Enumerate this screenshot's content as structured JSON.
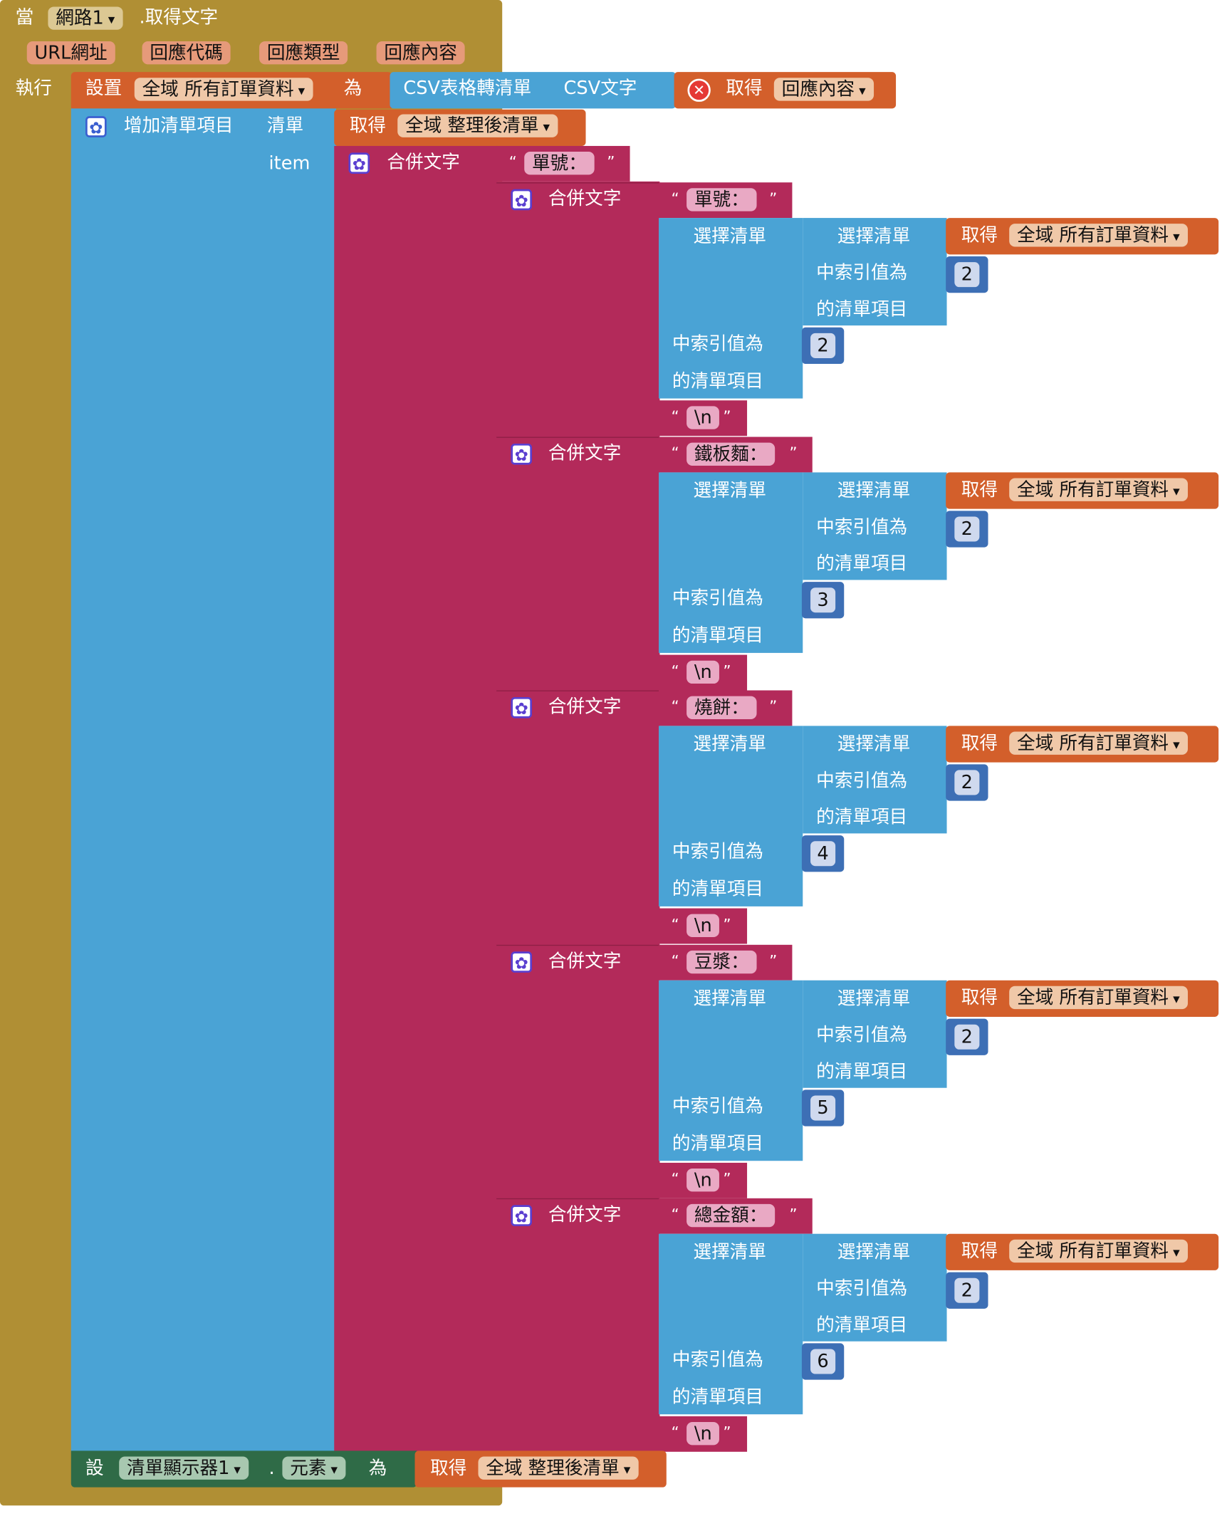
{
  "event": {
    "when": "當",
    "component": "網路1",
    "event_name": ".取得文字",
    "params": [
      "URL網址",
      "回應代碼",
      "回應類型",
      "回應內容"
    ],
    "do": "執行"
  },
  "set_global": {
    "label": "設置",
    "var": "全域 所有訂單資料",
    "to": "為",
    "csv_label": "CSV表格轉清單",
    "csv_text": "CSV文字",
    "get": "取得",
    "get_var": "回應內容"
  },
  "add_items": {
    "label": "增加清單項目",
    "list_label": "清單",
    "item_label": "item",
    "get": "取得",
    "get_var": "全域 整理後清單"
  },
  "join": {
    "label": "合併文字",
    "first_text": "單號："
  },
  "rows": [
    {
      "label": "單號：",
      "select": "選擇清單",
      "index_label": "中索引值為",
      "item_label": "的清單項目",
      "get": "取得",
      "var": "全域 所有訂單資料",
      "inner_index": "2",
      "outer_index": "2",
      "newline": "\\n"
    },
    {
      "label": "鐵板麵：",
      "select": "選擇清單",
      "index_label": "中索引值為",
      "item_label": "的清單項目",
      "get": "取得",
      "var": "全域 所有訂單資料",
      "inner_index": "2",
      "outer_index": "3",
      "newline": "\\n"
    },
    {
      "label": "燒餅：",
      "select": "選擇清單",
      "index_label": "中索引值為",
      "item_label": "的清單項目",
      "get": "取得",
      "var": "全域 所有訂單資料",
      "inner_index": "2",
      "outer_index": "4",
      "newline": "\\n"
    },
    {
      "label": "豆漿：",
      "select": "選擇清單",
      "index_label": "中索引值為",
      "item_label": "的清單項目",
      "get": "取得",
      "var": "全域 所有訂單資料",
      "inner_index": "2",
      "outer_index": "5",
      "newline": "\\n"
    },
    {
      "label": "總金額：",
      "select": "選擇清單",
      "index_label": "中索引值為",
      "item_label": "的清單項目",
      "get": "取得",
      "var": "全域 所有訂單資料",
      "inner_index": "2",
      "outer_index": "6",
      "newline": "\\n"
    }
  ],
  "set_component": {
    "label": "設",
    "component": "清單顯示器1",
    "dot": ".",
    "property": "元素",
    "to": "為",
    "get": "取得",
    "get_var": "全域 整理後清單"
  },
  "colors": {
    "event": "#b08f34",
    "variable": "#d35f2b",
    "list": "#4aa3d5",
    "text": "#b32a5a",
    "math": "#3d6fb5",
    "component": "#2f6b47"
  }
}
